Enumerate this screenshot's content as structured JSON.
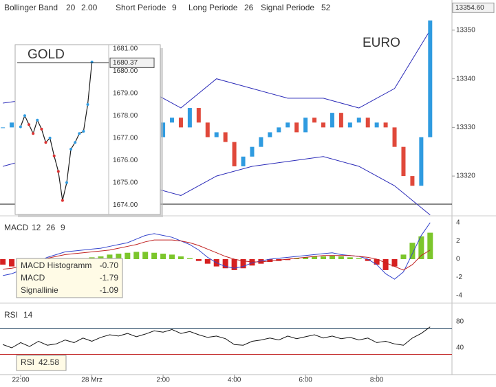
{
  "chart_data": [
    {
      "type": "candlestick",
      "legend_items": [
        {
          "label": "Bollinger Band",
          "params": [
            "20",
            "2.00"
          ]
        },
        {
          "label": "Short Periode",
          "params": [
            "9"
          ]
        },
        {
          "label": "Long Periode",
          "params": [
            "26"
          ]
        },
        {
          "label": "Signal Periode",
          "params": [
            "52"
          ]
        }
      ],
      "annotation": "EURO",
      "last_price": {
        "value": 13354.6,
        "label": "13354.60"
      },
      "xlim": [
        -0.32,
        50.45
      ],
      "ylim": [
        13312.1,
        13356.2
      ],
      "yticks": [
        13320,
        13330,
        13340,
        13350
      ],
      "x": [
        0,
        1,
        2,
        3,
        4,
        5,
        6,
        7,
        8,
        9,
        10,
        11,
        12,
        13,
        14,
        15,
        16,
        17,
        18,
        19,
        20,
        21,
        22,
        23,
        24,
        25,
        26,
        27,
        28,
        29,
        30,
        31,
        32,
        33,
        34,
        35,
        36,
        37,
        38,
        39,
        40,
        41,
        42,
        43,
        44,
        45,
        46,
        47,
        48
      ],
      "values": [
        13330,
        13331,
        13329,
        13328,
        13330,
        13331,
        13329,
        13327,
        13328,
        13330,
        13329,
        13331,
        13330,
        13332,
        13331,
        13329,
        13330,
        13328,
        13331,
        13332,
        13330,
        13334,
        13331,
        13328,
        13329,
        13327,
        13322,
        13324,
        13326,
        13328,
        13329,
        13330,
        13331,
        13329,
        13332,
        13331,
        13330,
        13333,
        13330,
        13331,
        13332,
        13330,
        13331,
        13330,
        13326,
        13320,
        13318,
        13328,
        13352
      ],
      "up_color": "#2f9be0",
      "down_color": "#e0483a",
      "bands": [
        {
          "name": "Upper",
          "color": "#2a2ab8",
          "x": [
            0,
            4,
            8,
            12,
            16,
            20,
            24,
            28,
            32,
            36,
            40,
            44,
            48
          ],
          "values": [
            13335,
            13336,
            13334,
            13336,
            13338,
            13334,
            13340,
            13338,
            13336,
            13336,
            13334,
            13338,
            13350
          ]
        },
        {
          "name": "Lower",
          "color": "#2a2ab8",
          "x": [
            0,
            4,
            8,
            12,
            16,
            20,
            24,
            28,
            32,
            36,
            40,
            44,
            48
          ],
          "values": [
            13322,
            13324,
            13325,
            13322,
            13318,
            13316,
            13320,
            13322,
            13323,
            13324,
            13322,
            13318,
            13312
          ]
        }
      ]
    },
    {
      "type": "line",
      "title": "GOLD",
      "last_price": {
        "value": 1680.37,
        "label": "1680.37"
      },
      "xlim": [
        -0.8,
        21
      ],
      "ylim": [
        1673.85,
        1681.12
      ],
      "yticks": [
        {
          "value": 1674,
          "label": "1674.00"
        },
        {
          "value": 1675,
          "label": "1675.00"
        },
        {
          "value": 1676,
          "label": "1676.00"
        },
        {
          "value": 1677,
          "label": "1677.00"
        },
        {
          "value": 1678,
          "label": "1678.00"
        },
        {
          "value": 1679,
          "label": "1679.00"
        },
        {
          "value": 1680,
          "label": "1680.00"
        },
        {
          "value": 1681,
          "label": "1681.00"
        }
      ],
      "x": [
        0,
        1,
        2,
        3,
        4,
        5,
        6,
        7,
        8,
        9,
        10,
        11,
        12,
        13,
        14,
        15,
        16,
        17
      ],
      "values": [
        1677.5,
        1678.0,
        1677.6,
        1677.2,
        1677.8,
        1677.4,
        1676.8,
        1677.0,
        1676.2,
        1675.5,
        1674.2,
        1675.0,
        1676.5,
        1676.8,
        1677.2,
        1677.3,
        1678.5,
        1680.4
      ],
      "color": "#1a1a1a"
    },
    {
      "type": "macd",
      "title": "MACD",
      "params": [
        "12",
        "26",
        "9"
      ],
      "xlim": [
        -0.32,
        50.45
      ],
      "ylim": [
        -4.6,
        4.45
      ],
      "yticks": [
        -4,
        -2,
        0,
        2,
        4
      ],
      "readouts": [
        {
          "label": "MACD Histogramm",
          "value": "-0.70"
        },
        {
          "label": "MACD",
          "value": "-1.79"
        },
        {
          "label": "Signallinie",
          "value": "-1.09"
        }
      ],
      "x": [
        0,
        1,
        2,
        3,
        4,
        5,
        6,
        7,
        8,
        9,
        10,
        11,
        12,
        13,
        14,
        15,
        16,
        17,
        18,
        19,
        20,
        21,
        22,
        23,
        24,
        25,
        26,
        27,
        28,
        29,
        30,
        31,
        32,
        33,
        34,
        35,
        36,
        37,
        38,
        39,
        40,
        41,
        42,
        43,
        44,
        45,
        46,
        47,
        48
      ],
      "series": [
        {
          "name": "MACD Histogramm",
          "pos_color": "#7cc62c",
          "color": "#d62020",
          "values": [
            -0.6,
            -0.8,
            -0.7,
            -0.6,
            -0.5,
            -0.4,
            -0.3,
            -0.2,
            -0.1,
            0.1,
            0.2,
            0.3,
            0.5,
            0.6,
            0.7,
            0.8,
            0.8,
            0.7,
            0.6,
            0.5,
            0.3,
            0.1,
            -0.2,
            -0.5,
            -0.8,
            -1.0,
            -1.2,
            -1.0,
            -0.7,
            -0.5,
            -0.3,
            -0.2,
            -0.1,
            0.1,
            0.2,
            0.3,
            0.3,
            0.4,
            0.3,
            0.2,
            0.1,
            -0.2,
            -0.6,
            -1.2,
            -0.8,
            0.5,
            1.8,
            2.5,
            2.9
          ]
        },
        {
          "name": "MACD",
          "color": "#3344cc",
          "values": [
            -1.8,
            -1.6,
            -1.2,
            -0.6,
            -0.2,
            0.2,
            0.5,
            0.8,
            0.9,
            1.0,
            1.1,
            1.2,
            1.4,
            1.6,
            1.8,
            2.2,
            2.6,
            2.8,
            2.6,
            2.4,
            2.0,
            1.6,
            1.0,
            0.2,
            -0.4,
            -0.8,
            -1.0,
            -0.8,
            -0.4,
            -0.2,
            0.0,
            0.1,
            0.2,
            0.3,
            0.4,
            0.5,
            0.6,
            0.7,
            0.5,
            0.4,
            0.3,
            0.0,
            -0.6,
            -1.6,
            -2.2,
            -1.4,
            0.6,
            2.6,
            4.0
          ]
        },
        {
          "name": "Signallinie",
          "color": "#c02020",
          "values": [
            -1.1,
            -1.0,
            -0.8,
            -0.5,
            -0.2,
            0.1,
            0.3,
            0.5,
            0.6,
            0.7,
            0.8,
            0.9,
            1.0,
            1.2,
            1.4,
            1.6,
            1.9,
            2.1,
            2.1,
            2.1,
            2.0,
            1.8,
            1.5,
            1.1,
            0.7,
            0.3,
            0.0,
            -0.2,
            -0.3,
            -0.3,
            -0.2,
            -0.1,
            0.0,
            0.1,
            0.2,
            0.3,
            0.4,
            0.4,
            0.4,
            0.4,
            0.3,
            0.2,
            0.0,
            -0.4,
            -0.8,
            -1.2,
            -0.6,
            0.4,
            1.0
          ]
        }
      ]
    },
    {
      "type": "line",
      "title": "RSI",
      "params": [
        "14"
      ],
      "readout": {
        "label": "RSI",
        "value": "42.58"
      },
      "xlim": [
        -0.32,
        50.45
      ],
      "ylim": [
        -1,
        101
      ],
      "yticks": [
        40,
        80
      ],
      "levels": [
        30,
        70
      ],
      "xticks": [
        {
          "value": 2,
          "label": "22:00"
        },
        {
          "value": 10,
          "label": "28 Mrz"
        },
        {
          "value": 18,
          "label": "2:00"
        },
        {
          "value": 26,
          "label": "4:00"
        },
        {
          "value": 34,
          "label": "6:00"
        },
        {
          "value": 42,
          "label": "8:00"
        }
      ],
      "x": [
        0,
        1,
        2,
        3,
        4,
        5,
        6,
        7,
        8,
        9,
        10,
        11,
        12,
        13,
        14,
        15,
        16,
        17,
        18,
        19,
        20,
        21,
        22,
        23,
        24,
        25,
        26,
        27,
        28,
        29,
        30,
        31,
        32,
        33,
        34,
        35,
        36,
        37,
        38,
        39,
        40,
        41,
        42,
        43,
        44,
        45,
        46,
        47,
        48
      ],
      "values": [
        45,
        40,
        48,
        42,
        50,
        44,
        46,
        52,
        48,
        55,
        50,
        56,
        60,
        58,
        62,
        57,
        61,
        66,
        64,
        68,
        62,
        65,
        60,
        56,
        58,
        54,
        45,
        44,
        50,
        52,
        55,
        52,
        58,
        54,
        57,
        60,
        55,
        58,
        54,
        56,
        52,
        55,
        48,
        50,
        46,
        44,
        55,
        62,
        72
      ],
      "color": "#111111"
    }
  ]
}
